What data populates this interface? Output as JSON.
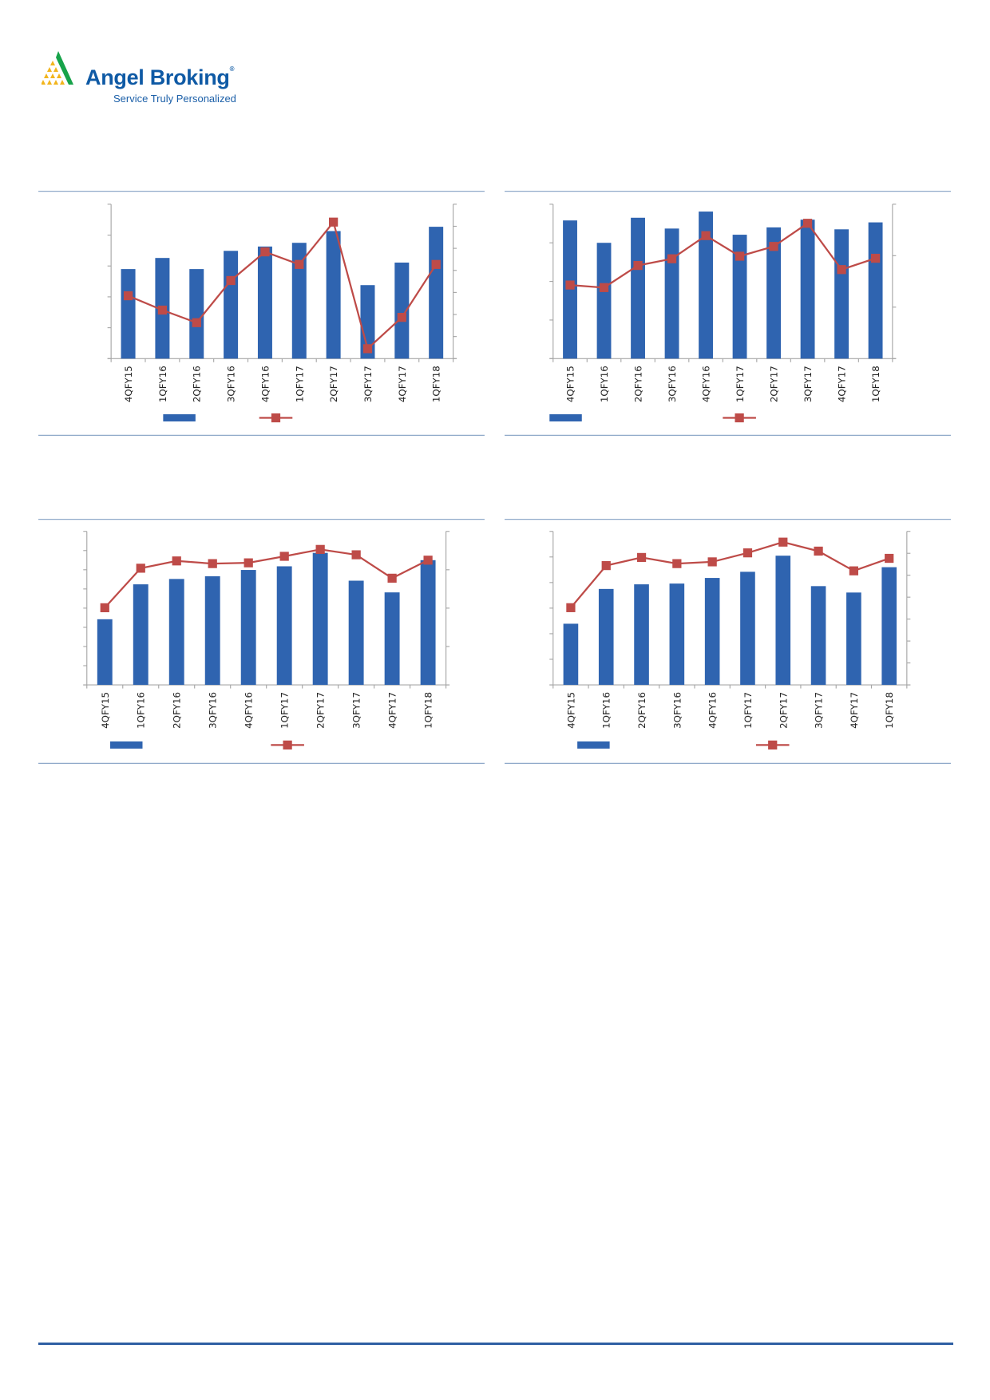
{
  "brand": {
    "name": "Angel Broking",
    "registered_mark": "®",
    "tagline": "Service Truly Personalized"
  },
  "colors": {
    "bar": "#2f64b0",
    "line": "#be4b48",
    "rule": "#8fa9c9",
    "axis": "#a6a6a6",
    "footer_rule": "#2e5fa3"
  },
  "chart_data": [
    {
      "type": "bar+line",
      "categories": [
        "4QFY15",
        "1QFY16",
        "2QFY16",
        "3QFY16",
        "4QFY16",
        "1QFY17",
        "2QFY17",
        "3QFY17",
        "4QFY17",
        "1QFY18"
      ],
      "series": [
        {
          "kind": "bar",
          "axis": "left",
          "values": [
            2.9,
            3.26,
            2.9,
            3.49,
            3.63,
            3.75,
            4.13,
            2.38,
            3.11,
            4.27
          ]
        },
        {
          "kind": "line",
          "axis": "right",
          "values": [
            2.85,
            2.2,
            1.63,
            3.54,
            4.84,
            4.27,
            6.19,
            0.45,
            1.87,
            4.27
          ]
        }
      ],
      "ylim_left": [
        0,
        5
      ],
      "ylim_right": [
        0,
        7
      ],
      "grid": false,
      "legend": "bottom"
    },
    {
      "type": "bar+line",
      "categories": [
        "4QFY15",
        "1QFY16",
        "2QFY16",
        "3QFY16",
        "4QFY16",
        "1QFY17",
        "2QFY17",
        "3QFY17",
        "4QFY17",
        "1QFY18"
      ],
      "series": [
        {
          "kind": "bar",
          "axis": "left",
          "values": [
            3.58,
            3.0,
            3.65,
            3.37,
            3.81,
            3.21,
            3.4,
            3.6,
            3.35,
            3.53
          ]
        },
        {
          "kind": "line",
          "axis": "right",
          "values": [
            1.43,
            1.38,
            1.81,
            1.94,
            2.39,
            1.99,
            2.18,
            2.63,
            1.73,
            1.95
          ]
        }
      ],
      "ylim_left": [
        0,
        4
      ],
      "ylim_right": [
        0,
        3
      ],
      "grid": false,
      "legend": "bottom"
    },
    {
      "type": "bar+line",
      "categories": [
        "4QFY15",
        "1QFY16",
        "2QFY16",
        "3QFY16",
        "4QFY16",
        "1QFY17",
        "2QFY17",
        "3QFY17",
        "4QFY17",
        "1QFY18"
      ],
      "series": [
        {
          "kind": "bar",
          "axis": "left",
          "values": [
            3.42,
            5.24,
            5.52,
            5.66,
            5.99,
            6.18,
            6.88,
            5.43,
            4.82,
            6.5
          ]
        },
        {
          "kind": "line",
          "axis": "right",
          "values": [
            2.01,
            3.04,
            3.23,
            3.16,
            3.18,
            3.35,
            3.53,
            3.39,
            2.78,
            3.25
          ]
        }
      ],
      "ylim_left": [
        0,
        8
      ],
      "ylim_right": [
        0,
        4
      ],
      "grid": false,
      "legend": "bottom"
    },
    {
      "type": "bar+line",
      "categories": [
        "4QFY15",
        "1QFY16",
        "2QFY16",
        "3QFY16",
        "4QFY16",
        "1QFY17",
        "2QFY17",
        "3QFY17",
        "4QFY17",
        "1QFY18"
      ],
      "series": [
        {
          "kind": "bar",
          "axis": "left",
          "values": [
            2.39,
            3.75,
            3.93,
            3.96,
            4.18,
            4.42,
            5.05,
            3.86,
            3.61,
            4.6
          ]
        },
        {
          "kind": "line",
          "axis": "right",
          "values": [
            3.52,
            5.44,
            5.81,
            5.53,
            5.61,
            6.02,
            6.51,
            6.1,
            5.2,
            5.77
          ]
        }
      ],
      "ylim_left": [
        0,
        6
      ],
      "ylim_right": [
        0,
        7
      ],
      "grid": false,
      "legend": "bottom"
    }
  ]
}
